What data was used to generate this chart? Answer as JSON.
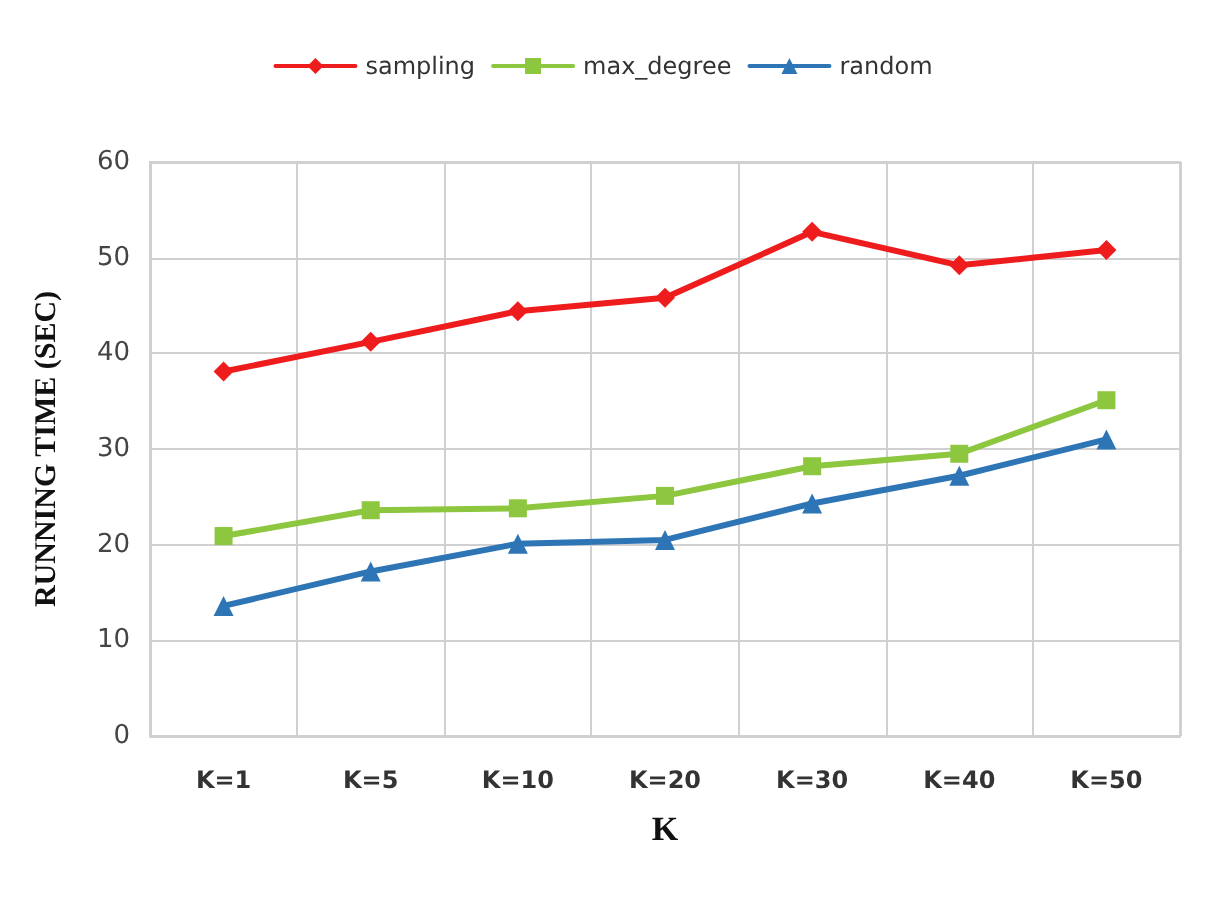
{
  "chart_data": {
    "type": "line",
    "xlabel": "K",
    "ylabel": "RUNNING TIME (SEC)",
    "categories": [
      "K=1",
      "K=5",
      "K=10",
      "K=20",
      "K=30",
      "K=40",
      "K=50"
    ],
    "series": [
      {
        "name": "sampling",
        "color": "#ee1c1c",
        "marker": "diamond",
        "values": [
          38.1,
          41.2,
          44.4,
          45.8,
          52.7,
          49.2,
          50.8
        ]
      },
      {
        "name": "max_degree",
        "color": "#8dc63f",
        "marker": "square",
        "values": [
          20.9,
          23.6,
          23.8,
          25.1,
          28.2,
          29.5,
          35.1
        ]
      },
      {
        "name": "random",
        "color": "#2e75b6",
        "marker": "triangle",
        "values": [
          13.6,
          17.2,
          20.1,
          20.5,
          24.3,
          27.2,
          31.0
        ]
      }
    ],
    "ylim": [
      0,
      60
    ],
    "yticks": [
      0,
      10,
      20,
      30,
      40,
      50,
      60
    ],
    "grid": true,
    "legend": "top",
    "line_style": "solid"
  }
}
